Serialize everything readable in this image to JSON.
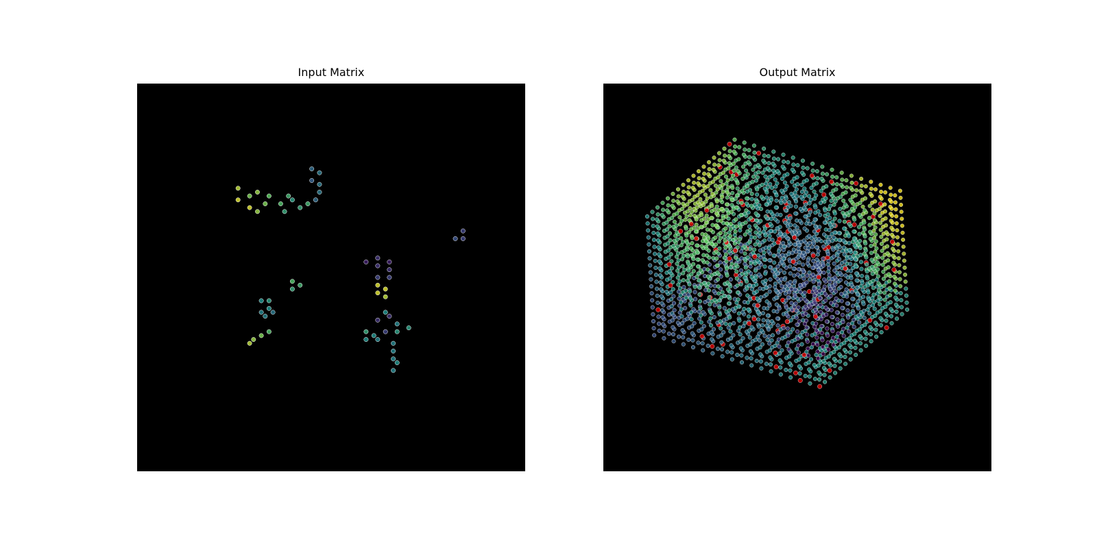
{
  "chart_data": [
    {
      "type": "scatter",
      "subtype": "3d-point-cloud",
      "title": "Input Matrix",
      "background": "#000000",
      "axes_visible": false,
      "grid": false,
      "colormap": "viridis",
      "point_edge_color": "#ffffff",
      "points": [
        {
          "x": 0.26,
          "y": 0.7,
          "v": 0.95
        },
        {
          "x": 0.29,
          "y": 0.68,
          "v": 0.95
        },
        {
          "x": 0.31,
          "y": 0.67,
          "v": 0.85
        },
        {
          "x": 0.29,
          "y": 0.71,
          "v": 0.8
        },
        {
          "x": 0.33,
          "y": 0.69,
          "v": 0.8
        },
        {
          "x": 0.26,
          "y": 0.73,
          "v": 0.9
        },
        {
          "x": 0.34,
          "y": 0.71,
          "v": 0.75
        },
        {
          "x": 0.37,
          "y": 0.69,
          "v": 0.7
        },
        {
          "x": 0.39,
          "y": 0.71,
          "v": 0.65
        },
        {
          "x": 0.4,
          "y": 0.7,
          "v": 0.55
        },
        {
          "x": 0.42,
          "y": 0.68,
          "v": 0.6
        },
        {
          "x": 0.44,
          "y": 0.69,
          "v": 0.65
        },
        {
          "x": 0.38,
          "y": 0.67,
          "v": 0.6
        },
        {
          "x": 0.31,
          "y": 0.72,
          "v": 0.85
        },
        {
          "x": 0.45,
          "y": 0.78,
          "v": 0.35
        },
        {
          "x": 0.47,
          "y": 0.77,
          "v": 0.4
        },
        {
          "x": 0.45,
          "y": 0.75,
          "v": 0.3
        },
        {
          "x": 0.47,
          "y": 0.74,
          "v": 0.4
        },
        {
          "x": 0.47,
          "y": 0.72,
          "v": 0.4
        },
        {
          "x": 0.46,
          "y": 0.7,
          "v": 0.35
        },
        {
          "x": 0.84,
          "y": 0.62,
          "v": 0.2
        },
        {
          "x": 0.82,
          "y": 0.6,
          "v": 0.25
        },
        {
          "x": 0.84,
          "y": 0.6,
          "v": 0.2
        },
        {
          "x": 0.4,
          "y": 0.49,
          "v": 0.7
        },
        {
          "x": 0.42,
          "y": 0.48,
          "v": 0.65
        },
        {
          "x": 0.4,
          "y": 0.47,
          "v": 0.6
        },
        {
          "x": 0.32,
          "y": 0.44,
          "v": 0.5
        },
        {
          "x": 0.34,
          "y": 0.44,
          "v": 0.55
        },
        {
          "x": 0.34,
          "y": 0.42,
          "v": 0.5
        },
        {
          "x": 0.32,
          "y": 0.41,
          "v": 0.45
        },
        {
          "x": 0.35,
          "y": 0.41,
          "v": 0.4
        },
        {
          "x": 0.33,
          "y": 0.4,
          "v": 0.45
        },
        {
          "x": 0.34,
          "y": 0.36,
          "v": 0.7
        },
        {
          "x": 0.32,
          "y": 0.35,
          "v": 0.8
        },
        {
          "x": 0.3,
          "y": 0.34,
          "v": 0.85
        },
        {
          "x": 0.29,
          "y": 0.33,
          "v": 0.9
        },
        {
          "x": 0.59,
          "y": 0.54,
          "v": 0.1
        },
        {
          "x": 0.62,
          "y": 0.55,
          "v": 0.15
        },
        {
          "x": 0.65,
          "y": 0.54,
          "v": 0.1
        },
        {
          "x": 0.62,
          "y": 0.53,
          "v": 0.15
        },
        {
          "x": 0.65,
          "y": 0.52,
          "v": 0.15
        },
        {
          "x": 0.62,
          "y": 0.5,
          "v": 0.2
        },
        {
          "x": 0.65,
          "y": 0.5,
          "v": 0.2
        },
        {
          "x": 0.62,
          "y": 0.48,
          "v": 0.95
        },
        {
          "x": 0.64,
          "y": 0.47,
          "v": 0.95
        },
        {
          "x": 0.62,
          "y": 0.46,
          "v": 0.95
        },
        {
          "x": 0.64,
          "y": 0.45,
          "v": 0.9
        },
        {
          "x": 0.64,
          "y": 0.41,
          "v": 0.5
        },
        {
          "x": 0.62,
          "y": 0.39,
          "v": 0.15
        },
        {
          "x": 0.65,
          "y": 0.4,
          "v": 0.15
        },
        {
          "x": 0.67,
          "y": 0.38,
          "v": 0.45
        },
        {
          "x": 0.7,
          "y": 0.37,
          "v": 0.55
        },
        {
          "x": 0.59,
          "y": 0.36,
          "v": 0.6
        },
        {
          "x": 0.61,
          "y": 0.35,
          "v": 0.5
        },
        {
          "x": 0.64,
          "y": 0.36,
          "v": 0.2
        },
        {
          "x": 0.67,
          "y": 0.36,
          "v": 0.55
        },
        {
          "x": 0.59,
          "y": 0.34,
          "v": 0.5
        },
        {
          "x": 0.62,
          "y": 0.34,
          "v": 0.45
        },
        {
          "x": 0.66,
          "y": 0.33,
          "v": 0.45
        },
        {
          "x": 0.66,
          "y": 0.31,
          "v": 0.45
        },
        {
          "x": 0.66,
          "y": 0.29,
          "v": 0.45
        },
        {
          "x": 0.67,
          "y": 0.28,
          "v": 0.5
        },
        {
          "x": 0.66,
          "y": 0.26,
          "v": 0.45
        }
      ]
    },
    {
      "type": "scatter",
      "subtype": "3d-point-cloud",
      "title": "Output Matrix",
      "background": "#000000",
      "axes_visible": false,
      "grid": false,
      "colormap": "viridis",
      "point_edge_color": "#ffffff",
      "highlight_color": "#e00000",
      "grid_points_per_axis": 18,
      "description_of_shape": "dense cube lattice of colored points with scattered red highlighted points",
      "highlighted_fraction": 0.03
    }
  ]
}
